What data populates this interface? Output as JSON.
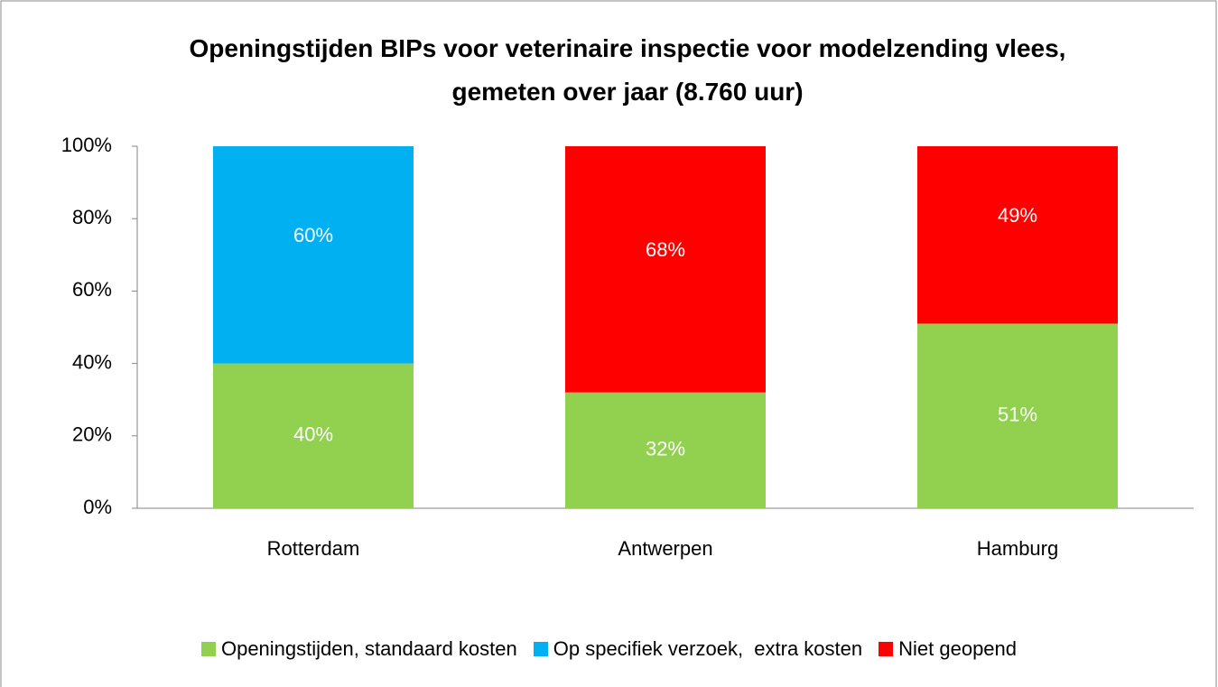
{
  "chart_data": {
    "type": "stacked_bar",
    "title": "Openingstijden BIPs voor veterinaire inspectie voor modelzending vlees, gemeten over jaar (8.760 uur)",
    "categories": [
      "Rotterdam",
      "Antwerpen",
      "Hamburg"
    ],
    "series": [
      {
        "name": "Openingstijden, standaard kosten",
        "color": "#92d050",
        "values": [
          40,
          32,
          51
        ],
        "value_labels": [
          "40%",
          "32%",
          "51%"
        ]
      },
      {
        "name": "Op specifiek verzoek,  extra kosten",
        "color": "#00b0f0",
        "values": [
          60,
          null,
          null
        ],
        "value_labels": [
          "60%",
          null,
          null
        ]
      },
      {
        "name": "Niet geopend",
        "color": "#ff0000",
        "values": [
          null,
          68,
          49
        ],
        "value_labels": [
          null,
          "68%",
          "49%"
        ]
      }
    ],
    "ylim": [
      0,
      100
    ],
    "yticks": [
      {
        "value": 0,
        "label": "0%"
      },
      {
        "value": 20,
        "label": "20%"
      },
      {
        "value": 40,
        "label": "40%"
      },
      {
        "value": 60,
        "label": "60%"
      },
      {
        "value": 80,
        "label": "80%"
      },
      {
        "value": 100,
        "label": "100%"
      }
    ],
    "grid": false,
    "legend": "bottom"
  }
}
